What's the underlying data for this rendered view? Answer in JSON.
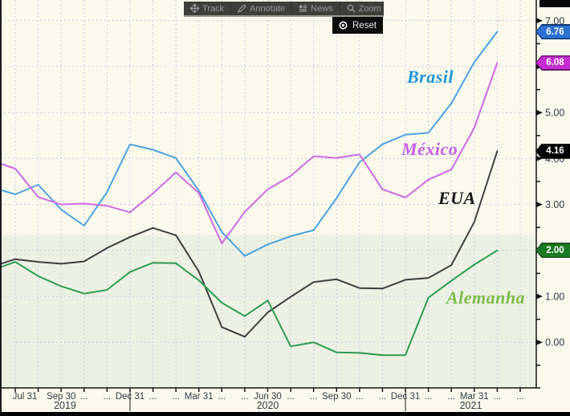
{
  "toolbar": {
    "buttons": [
      {
        "label": "Track",
        "icon": "track-move-icon"
      },
      {
        "label": "Annotate",
        "icon": "annotate-pencil-icon"
      },
      {
        "label": "News",
        "icon": "news-icon"
      },
      {
        "label": "Zoom",
        "icon": "zoom-magnifier-icon"
      }
    ],
    "reset_label": "Reset"
  },
  "y_axis": {
    "tick_labels": [
      "7.00",
      "6.00",
      "5.00",
      "4.00",
      "3.00",
      "2.00",
      "1.00",
      "0.00"
    ],
    "tick_values": [
      7,
      6,
      5,
      4,
      3,
      2,
      1,
      0
    ],
    "text_color": "#303c49"
  },
  "badges": [
    {
      "text": "6.76",
      "value": 6.76,
      "fill": "#2d72d2",
      "border": "#123a75"
    },
    {
      "text": "6.08",
      "value": 6.08,
      "fill": "#c42ccf",
      "border": "#5e1168"
    },
    {
      "text": "4.16",
      "value": 4.16,
      "fill": "#000000",
      "border": "#000000"
    },
    {
      "text": "2.00",
      "value": 2.0,
      "fill": "#1d7a24",
      "border": "#0b3f10"
    }
  ],
  "x_axis": {
    "ticks": [
      {
        "m": 1,
        "label": "Jul 31"
      },
      {
        "m": 3,
        "label": "Sep 30"
      },
      {
        "m": 4,
        "label": "..."
      },
      {
        "m": 5,
        "label": "..."
      },
      {
        "m": 6,
        "label": "Dec 31"
      },
      {
        "m": 7,
        "label": "..."
      },
      {
        "m": 8,
        "label": "..."
      },
      {
        "m": 9,
        "label": "Mar 31"
      },
      {
        "m": 10,
        "label": "..."
      },
      {
        "m": 11,
        "label": "..."
      },
      {
        "m": 12,
        "label": "Jun 30"
      },
      {
        "m": 13,
        "label": "..."
      },
      {
        "m": 14,
        "label": "..."
      },
      {
        "m": 15,
        "label": "Sep 30"
      },
      {
        "m": 16,
        "label": "..."
      },
      {
        "m": 17,
        "label": "..."
      },
      {
        "m": 18,
        "label": "Dec 31"
      },
      {
        "m": 19,
        "label": "..."
      },
      {
        "m": 20,
        "label": "..."
      },
      {
        "m": 21,
        "label": "Mar 31"
      },
      {
        "m": 22,
        "label": "..."
      },
      {
        "m": 23,
        "label": "..."
      }
    ],
    "years": [
      "2019",
      "2020",
      "2021"
    ],
    "text_color": "#303c49"
  },
  "series_labels": {
    "brasil": {
      "text": "Brasil",
      "color": "#2196d6"
    },
    "mexico": {
      "text": "México",
      "color": "#c45ce5"
    },
    "eua": {
      "text": "EUA",
      "color": "#141414"
    },
    "alemanha": {
      "text": "Alemanha",
      "color": "#7cbd4b"
    }
  },
  "chart_data": {
    "type": "line",
    "title": "",
    "ylabel": "",
    "xlabel": "",
    "ylim": [
      -0.96,
      7.45
    ],
    "yticks": [
      0,
      1,
      2,
      3,
      4,
      5,
      6,
      7
    ],
    "grid": true,
    "legend_position": "inline-labels",
    "shaded_band": {
      "top_value": 2.34,
      "bottom": "plot-bottom",
      "color": "#edf1e3"
    },
    "background_color": "#fbf9ec",
    "gridline_color": "#cbc5e8",
    "categories": [
      "Jun 2019",
      "Jul 2019",
      "Aug 2019",
      "Sep 2019",
      "Oct 2019",
      "Nov 2019",
      "Dec 2019",
      "Jan 2020",
      "Feb 2020",
      "Mar 2020",
      "Apr 2020",
      "May 2020",
      "Jun 2020",
      "Jul 2020",
      "Aug 2020",
      "Sep 2020",
      "Oct 2020",
      "Nov 2020",
      "Dec 2020",
      "Jan 2021",
      "Feb 2021",
      "Mar 2021",
      "Apr 2021"
    ],
    "series": [
      {
        "name": "Brasil",
        "color": "#4da2dc",
        "values": [
          3.37,
          3.22,
          3.43,
          2.89,
          2.54,
          3.27,
          4.31,
          4.19,
          4.01,
          3.3,
          2.4,
          1.88,
          2.13,
          2.31,
          2.44,
          3.14,
          3.92,
          4.31,
          4.52,
          4.56,
          5.2,
          6.1,
          6.76
        ],
        "last_value_badge": "6.76"
      },
      {
        "name": "México",
        "color": "#cd6be0",
        "values": [
          3.95,
          3.78,
          3.16,
          3.0,
          3.02,
          2.97,
          2.83,
          3.24,
          3.7,
          3.25,
          2.15,
          2.84,
          3.33,
          3.62,
          4.05,
          4.01,
          4.09,
          3.33,
          3.15,
          3.54,
          3.76,
          4.67,
          6.08
        ],
        "last_value_badge": "6.08"
      },
      {
        "name": "EUA",
        "color": "#3f3f3f",
        "values": [
          1.65,
          1.81,
          1.75,
          1.71,
          1.76,
          2.05,
          2.29,
          2.49,
          2.33,
          1.54,
          0.33,
          0.12,
          0.65,
          0.99,
          1.31,
          1.37,
          1.18,
          1.17,
          1.36,
          1.4,
          1.68,
          2.62,
          4.16
        ],
        "last_value_badge": "4.16"
      },
      {
        "name": "Alemanha",
        "color": "#2f9b51",
        "values": [
          1.57,
          1.75,
          1.44,
          1.22,
          1.06,
          1.14,
          1.53,
          1.73,
          1.72,
          1.35,
          0.86,
          0.57,
          0.91,
          -0.09,
          0.0,
          -0.22,
          -0.23,
          -0.28,
          -0.28,
          0.97,
          1.34,
          1.69,
          2.0
        ],
        "last_value_badge": "2.00"
      }
    ]
  }
}
